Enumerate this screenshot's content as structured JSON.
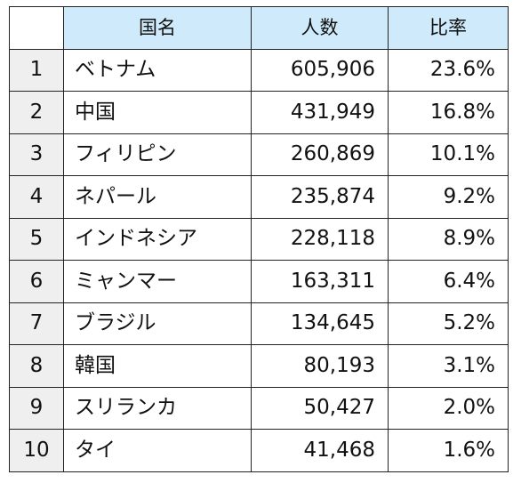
{
  "table": {
    "headers": {
      "rank": "",
      "country": "国名",
      "count": "人数",
      "ratio": "比率"
    },
    "rows": [
      {
        "rank": "1",
        "country": "ベトナム",
        "count": "605,906",
        "ratio": "23.6%"
      },
      {
        "rank": "2",
        "country": "中国",
        "count": "431,949",
        "ratio": "16.8%"
      },
      {
        "rank": "3",
        "country": "フィリピン",
        "count": "260,869",
        "ratio": "10.1%"
      },
      {
        "rank": "4",
        "country": "ネパール",
        "count": "235,874",
        "ratio": "9.2%"
      },
      {
        "rank": "5",
        "country": "インドネシア",
        "count": "228,118",
        "ratio": "8.9%"
      },
      {
        "rank": "6",
        "country": "ミャンマー",
        "count": "163,311",
        "ratio": "6.4%"
      },
      {
        "rank": "7",
        "country": "ブラジル",
        "count": "134,645",
        "ratio": "5.2%"
      },
      {
        "rank": "8",
        "country": "韓国",
        "count": "80,193",
        "ratio": "3.1%"
      },
      {
        "rank": "9",
        "country": "スリランカ",
        "count": "50,427",
        "ratio": "2.0%"
      },
      {
        "rank": "10",
        "country": "タイ",
        "count": "41,468",
        "ratio": "1.6%"
      }
    ]
  },
  "colors": {
    "header_background": "#cfeafa",
    "rank_background": "#efefef",
    "border": "#222222"
  }
}
